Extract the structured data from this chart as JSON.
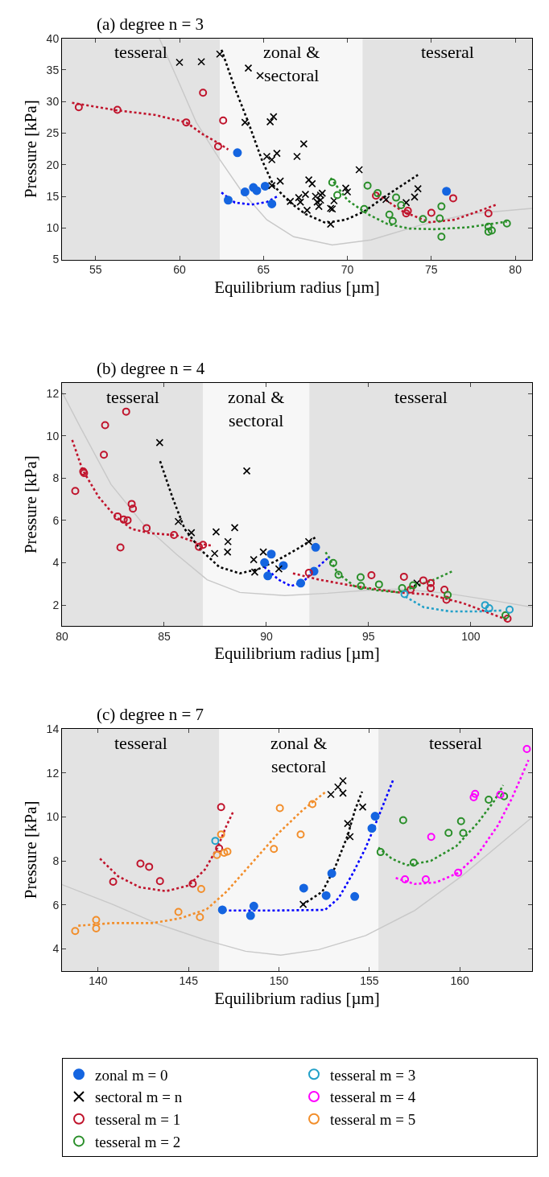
{
  "chart_data": [
    {
      "type": "scatter",
      "title": "(a) degree n = 3",
      "xlabel": "Equilibrium radius [µm]",
      "ylabel": "Pressure [kPa]",
      "xlim": [
        53,
        81
      ],
      "ylim": [
        5,
        40
      ],
      "xticks": [
        55,
        60,
        65,
        70,
        75,
        80
      ],
      "yticks": [
        5,
        10,
        15,
        20,
        25,
        30,
        35,
        40
      ],
      "grid": false,
      "legend": "bottom",
      "bands": [
        {
          "axis": "x",
          "from": 53,
          "to": 62.4,
          "label": "tesseral",
          "color": "#e3e3e3"
        },
        {
          "axis": "x",
          "from": 62.4,
          "to": 70.9,
          "label": "zonal &\nsectoral",
          "color": "#f7f7f7"
        },
        {
          "axis": "x",
          "from": 70.9,
          "to": 81,
          "label": "tesseral",
          "color": "#e3e3e3"
        }
      ],
      "series": [
        {
          "type": "line",
          "line_style": "solid",
          "color": "#c8c8c8",
          "x": [
            58.8,
            59.9,
            61.0,
            62.4,
            63.7,
            65.2,
            66.8,
            69.1,
            71.4,
            74.3,
            77.2,
            81
          ],
          "values": [
            40,
            33.4,
            26.7,
            20.8,
            15.8,
            11.3,
            8.6,
            7.3,
            8.1,
            10.4,
            12.2,
            13.1
          ]
        },
        {
          "type": "line",
          "line_style": "dotted",
          "color": "#c0142c",
          "x": [
            53.6,
            56.3,
            58.5,
            60.4,
            61.4,
            62.4,
            62.9
          ],
          "values": [
            29.8,
            28.6,
            27.9,
            26.7,
            24.8,
            23.3,
            22.4
          ]
        },
        {
          "type": "line",
          "line_style": "dotted",
          "color": "#c0142c",
          "x": [
            71.8,
            73.3,
            74.9,
            76.4,
            78.9
          ],
          "values": [
            15.3,
            12.6,
            10.9,
            11.3,
            13.7
          ]
        },
        {
          "type": "line",
          "line_style": "dotted",
          "color": "#0000ff",
          "x": [
            62.5,
            63.3,
            64.3,
            65.2,
            65.9
          ],
          "values": [
            15.6,
            14.0,
            13.7,
            14.1,
            15.1
          ]
        },
        {
          "type": "line",
          "line_style": "dotted",
          "color": "#000000",
          "x": [
            62.5,
            63.3,
            64.1,
            64.9,
            65.6,
            66.6,
            67.5,
            68.7,
            69.9,
            71.0,
            72.2,
            74.2
          ],
          "values": [
            38.2,
            32.1,
            26.7,
            20.8,
            16.7,
            14.0,
            12.2,
            10.8,
            11.3,
            12.6,
            14.9,
            18.4
          ]
        },
        {
          "type": "line",
          "line_style": "dotted",
          "color": "#2a8f2a",
          "x": [
            69.0,
            70.0,
            71.2,
            72.4,
            73.7,
            75.2,
            77.2,
            79.5
          ],
          "values": [
            17.9,
            14.4,
            12.2,
            10.6,
            9.9,
            9.8,
            10.1,
            11.0
          ]
        },
        {
          "type": "scatter",
          "name": "zonal m = 0",
          "marker": "circle",
          "color": "#1565e0",
          "x": [
            63.45,
            62.9,
            63.9,
            64.4,
            64.6,
            65.1,
            65.5,
            75.9
          ],
          "values": [
            21.9,
            14.4,
            15.7,
            16.4,
            15.9,
            16.6,
            13.8,
            15.8
          ]
        },
        {
          "type": "scatter",
          "name": "sectoral m = n",
          "marker": "cross",
          "color": "#000000",
          "x": [
            60.0,
            61.3,
            62.4,
            64.1,
            64.8,
            63.9,
            65.4,
            65.6,
            65.2,
            65.5,
            65.8,
            65.5,
            66.0,
            67.0,
            67.4,
            67.7,
            67.9,
            66.6,
            67.1,
            67.2,
            67.5,
            67.6,
            68.1,
            68.4,
            68.5,
            68.2,
            68.3,
            68.4,
            69.0,
            69.1,
            69.0,
            69.2,
            69.9,
            70.0,
            70.7,
            72.3,
            73.5,
            74.0,
            74.2
          ],
          "values": [
            36.2,
            36.3,
            37.5,
            35.3,
            34.1,
            26.7,
            26.8,
            27.6,
            21.3,
            20.8,
            21.8,
            16.7,
            17.4,
            21.3,
            23.3,
            17.6,
            17.0,
            14.2,
            14.8,
            14.1,
            15.3,
            12.8,
            15.0,
            15.2,
            15.5,
            14.1,
            13.4,
            14.4,
            13.1,
            13.0,
            10.6,
            14.3,
            16.3,
            15.7,
            19.2,
            14.5,
            14.0,
            14.9,
            16.2
          ]
        },
        {
          "type": "scatter",
          "name": "tesseral m = 1",
          "marker": "circle-open",
          "color": "#c0142c",
          "x": [
            54.0,
            56.3,
            60.4,
            61.4,
            62.6,
            62.3,
            71.7,
            73.5,
            73.6,
            75.0,
            76.3,
            78.4
          ],
          "values": [
            29.1,
            28.7,
            26.7,
            31.4,
            27.0,
            22.9,
            15.1,
            12.3,
            12.7,
            12.4,
            14.7,
            12.3
          ]
        },
        {
          "type": "scatter",
          "name": "tesseral m = 2",
          "marker": "circle-open",
          "color": "#2a8f2a",
          "x": [
            69.1,
            69.4,
            71.0,
            71.2,
            71.8,
            72.5,
            72.7,
            72.9,
            73.2,
            74.5,
            75.5,
            75.6,
            75.6,
            78.4,
            78.4,
            78.6,
            79.5
          ],
          "values": [
            17.2,
            15.2,
            13.0,
            16.7,
            15.5,
            12.1,
            11.1,
            14.8,
            13.6,
            11.4,
            11.5,
            13.4,
            8.6,
            10.2,
            9.4,
            9.6,
            10.7
          ]
        }
      ]
    },
    {
      "type": "scatter",
      "title": "(b) degree n = 4",
      "xlabel": "Equilibrium radius [µm]",
      "ylabel": "Pressure [kPa]",
      "xlim": [
        80,
        103
      ],
      "ylim": [
        1,
        12.5
      ],
      "xticks": [
        80,
        85,
        90,
        95,
        100
      ],
      "yticks": [
        2,
        4,
        6,
        8,
        10,
        12
      ],
      "grid": false,
      "legend": "bottom",
      "bands": [
        {
          "axis": "x",
          "from": 80,
          "to": 86.9,
          "label": "tesseral",
          "color": "#e3e3e3"
        },
        {
          "axis": "x",
          "from": 86.9,
          "to": 92.1,
          "label": "zonal &\nsectoral",
          "color": "#f7f7f7"
        },
        {
          "axis": "x",
          "from": 92.1,
          "to": 103,
          "label": "tesseral",
          "color": "#e3e3e3"
        }
      ],
      "series": [
        {
          "type": "line",
          "line_style": "solid",
          "color": "#c8c8c8",
          "x": [
            80,
            80.9,
            82.4,
            84.0,
            85.6,
            87.1,
            88.7,
            90.9,
            93.0,
            94.9,
            96.5,
            98.8,
            101.2,
            103.0
          ],
          "values": [
            12.07,
            10.4,
            7.7,
            5.8,
            4.4,
            3.2,
            2.6,
            2.45,
            2.56,
            2.7,
            2.76,
            2.56,
            2.2,
            1.9
          ]
        },
        {
          "type": "line",
          "line_style": "dotted",
          "color": "#c0142c",
          "x": [
            80.5,
            81.0,
            81.8,
            82.6,
            83.4,
            84.3,
            85.6,
            86.7,
            87.4
          ],
          "values": [
            9.8,
            8.4,
            7.1,
            6.2,
            5.6,
            5.4,
            5.3,
            4.9,
            4.8
          ]
        },
        {
          "type": "line",
          "line_style": "dotted",
          "color": "#c0142c",
          "x": [
            91.3,
            92.6,
            94.3,
            96.5,
            98.0,
            99.6,
            101.8
          ],
          "values": [
            3.5,
            3.2,
            2.9,
            2.6,
            2.5,
            2.1,
            1.3
          ]
        },
        {
          "type": "line",
          "line_style": "dotted",
          "color": "#0000ff",
          "x": [
            89.9,
            90.6,
            91.2,
            91.8,
            92.4,
            93.1
          ],
          "values": [
            3.8,
            3.2,
            2.9,
            3.1,
            3.7,
            4.3
          ]
        },
        {
          "type": "line",
          "line_style": "dotted",
          "color": "#000000",
          "x": [
            84.8,
            85.4,
            86.0,
            86.8,
            87.7,
            88.7,
            89.6,
            90.5,
            91.6,
            92.4
          ],
          "values": [
            8.8,
            7.1,
            5.6,
            4.6,
            3.8,
            3.5,
            3.7,
            4.1,
            4.7,
            5.2
          ]
        },
        {
          "type": "line",
          "line_style": "dotted",
          "color": "#2a8f2a",
          "x": [
            92.9,
            93.5,
            94.3,
            95.4,
            96.5,
            97.3,
            98.2,
            99.1
          ],
          "values": [
            4.5,
            3.5,
            2.9,
            2.7,
            2.6,
            2.9,
            3.2,
            3.6
          ]
        },
        {
          "type": "line",
          "line_style": "dotted",
          "color": "#22a0c8",
          "x": [
            96.8,
            97.7,
            99.0,
            100.4,
            101.6
          ],
          "values": [
            2.4,
            1.9,
            1.7,
            1.7,
            1.75
          ]
        },
        {
          "type": "scatter",
          "name": "zonal m = 0",
          "marker": "circle",
          "color": "#1565e0",
          "x": [
            89.91,
            90.24,
            90.07,
            90.83,
            91.68,
            92.33,
            92.41
          ],
          "values": [
            4.01,
            4.41,
            3.38,
            3.87,
            3.04,
            3.6,
            4.73
          ]
        },
        {
          "type": "scatter",
          "name": "sectoral m = n",
          "marker": "cross",
          "color": "#000000",
          "x": [
            84.78,
            85.69,
            86.33,
            87.47,
            87.54,
            88.12,
            88.1,
            88.45,
            89.04,
            89.38,
            89.43,
            89.85,
            90.61,
            92.07,
            97.37
          ],
          "values": [
            9.68,
            5.95,
            5.42,
            4.44,
            5.46,
            5.0,
            4.51,
            5.66,
            8.34,
            4.15,
            3.56,
            4.51,
            3.71,
            5.0,
            3.04
          ]
        },
        {
          "type": "scatter",
          "name": "tesseral m = 1",
          "marker": "circle-open",
          "color": "#c0142c",
          "x": [
            80.65,
            81.04,
            81.08,
            82.05,
            82.11,
            83.14,
            82.86,
            82.72,
            83.02,
            83.21,
            83.41,
            83.47,
            84.14,
            85.48,
            86.7,
            86.9,
            92.08,
            95.14,
            96.73,
            97.06,
            97.68,
            98.04,
            98.04,
            98.71,
            98.81,
            101.8
          ],
          "values": [
            7.39,
            8.31,
            8.24,
            9.1,
            10.5,
            11.14,
            4.72,
            6.19,
            6.04,
            6.01,
            6.78,
            6.56,
            5.64,
            5.31,
            4.75,
            4.85,
            3.53,
            3.41,
            3.34,
            2.74,
            3.17,
            3.04,
            2.8,
            2.73,
            2.25,
            1.36
          ]
        },
        {
          "type": "scatter",
          "name": "tesseral m = 2",
          "marker": "circle-open",
          "color": "#2a8f2a",
          "x": [
            93.27,
            93.53,
            94.61,
            94.63,
            95.51,
            96.64,
            97.18,
            98.87,
            101.7
          ],
          "values": [
            3.99,
            3.43,
            3.32,
            2.91,
            2.98,
            2.8,
            2.94,
            2.48,
            1.52
          ]
        },
        {
          "type": "scatter",
          "name": "tesseral m = 3",
          "marker": "circle-open",
          "color": "#22a0c8",
          "x": [
            96.76,
            100.7,
            100.9,
            101.9
          ],
          "values": [
            2.52,
            2.0,
            1.85,
            1.79
          ]
        }
      ]
    },
    {
      "type": "scatter",
      "title": "(c) degree n = 7",
      "xlabel": "Equilibrium radius [µm]",
      "ylabel": "Pressure [kPa]",
      "xlim": [
        138,
        164
      ],
      "ylim": [
        3,
        14
      ],
      "xticks": [
        140,
        145,
        150,
        155,
        160
      ],
      "yticks": [
        4,
        6,
        8,
        10,
        12,
        14
      ],
      "grid": false,
      "legend": "bottom",
      "bands": [
        {
          "axis": "x",
          "from": 138,
          "to": 146.7,
          "label": "tesseral",
          "color": "#e3e3e3"
        },
        {
          "axis": "x",
          "from": 146.7,
          "to": 155.5,
          "label": "zonal &\nsectoral",
          "color": "#f7f7f7"
        },
        {
          "axis": "x",
          "from": 155.5,
          "to": 164,
          "label": "tesseral",
          "color": "#e3e3e3"
        }
      ],
      "series": [
        {
          "type": "line",
          "line_style": "solid",
          "color": "#c8c8c8",
          "x": [
            138,
            140.8,
            143.4,
            146.0,
            148.15,
            150.1,
            152.2,
            154.8,
            157.5,
            160.1,
            164
          ],
          "values": [
            6.92,
            6.02,
            5.1,
            4.38,
            3.89,
            3.71,
            3.96,
            4.6,
            5.74,
            7.3,
            9.98
          ]
        },
        {
          "type": "line",
          "line_style": "dotted",
          "color": "#c0142c",
          "x": [
            140.1,
            141.1,
            142.3,
            143.75,
            145.0,
            145.9,
            146.6,
            147.1,
            147.45
          ],
          "values": [
            8.1,
            7.3,
            6.8,
            6.62,
            6.88,
            7.6,
            8.6,
            9.6,
            10.2
          ]
        },
        {
          "type": "line",
          "line_style": "dotted",
          "color": "#f28e2b",
          "x": [
            138.9,
            140.8,
            143.05,
            144.6,
            146.0,
            147.1,
            148.5,
            149.9,
            151.3,
            152.6
          ],
          "values": [
            5.05,
            5.17,
            5.17,
            5.4,
            5.8,
            6.6,
            7.9,
            9.2,
            10.3,
            11.15
          ]
        },
        {
          "type": "line",
          "line_style": "dotted",
          "color": "#0000ff",
          "x": [
            146.7,
            149.6,
            152.55,
            153.3,
            154.1,
            154.8,
            155.5,
            156.3
          ],
          "values": [
            5.74,
            5.74,
            5.77,
            6.3,
            7.45,
            8.6,
            10.0,
            11.65
          ]
        },
        {
          "type": "line",
          "line_style": "dotted",
          "color": "#000000",
          "x": [
            151.3,
            152.4,
            153.1,
            153.8,
            154.2,
            154.6
          ],
          "values": [
            6.0,
            6.6,
            7.7,
            9.15,
            10.3,
            11.15
          ]
        },
        {
          "type": "line",
          "line_style": "dotted",
          "color": "#2a8f2a",
          "x": [
            155.5,
            156.25,
            157.1,
            158.4,
            159.8,
            161.0,
            161.9,
            162.4
          ],
          "values": [
            8.6,
            8.09,
            7.8,
            8.0,
            8.66,
            9.73,
            10.72,
            11.44
          ]
        },
        {
          "type": "line",
          "line_style": "dotted",
          "color": "#ff00ff",
          "x": [
            156.46,
            157.5,
            158.7,
            159.9,
            161.0,
            162.1,
            162.9,
            163.8
          ],
          "values": [
            7.22,
            6.95,
            7.02,
            7.45,
            8.3,
            9.6,
            10.87,
            12.58
          ]
        },
        {
          "type": "scatter",
          "name": "zonal m = 0",
          "marker": "circle",
          "color": "#1565e0",
          "x": [
            146.87,
            148.43,
            148.61,
            151.37,
            152.61,
            152.92,
            154.19,
            155.14,
            155.32
          ],
          "values": [
            5.77,
            5.51,
            5.94,
            6.76,
            6.42,
            7.43,
            6.38,
            9.48,
            10.03
          ]
        },
        {
          "type": "scatter",
          "name": "sectoral m = n",
          "marker": "cross",
          "color": "#000000",
          "x": [
            151.34,
            152.87,
            153.26,
            153.54,
            153.54,
            153.8,
            153.93,
            154.63
          ],
          "values": [
            6.02,
            11.02,
            11.36,
            11.64,
            11.08,
            9.7,
            9.1,
            10.45
          ]
        },
        {
          "type": "scatter",
          "name": "tesseral m = 1",
          "marker": "circle-open",
          "color": "#c0142c",
          "x": [
            140.83,
            142.34,
            142.82,
            143.42,
            145.23,
            146.8,
            146.69
          ],
          "values": [
            7.05,
            7.87,
            7.73,
            7.08,
            6.96,
            10.44,
            8.57
          ]
        },
        {
          "type": "scatter",
          "name": "tesseral m = 2",
          "marker": "circle-open",
          "color": "#2a8f2a",
          "x": [
            155.62,
            156.87,
            157.45,
            159.38,
            160.07,
            160.19,
            161.6,
            162.45
          ],
          "values": [
            8.4,
            9.85,
            7.92,
            9.27,
            9.8,
            9.26,
            10.78,
            10.94
          ]
        },
        {
          "type": "scatter",
          "name": "tesseral m = 3",
          "marker": "circle-open",
          "color": "#22a0c8",
          "x": [
            146.48
          ],
          "values": [
            8.91
          ]
        },
        {
          "type": "scatter",
          "name": "tesseral m = 4",
          "marker": "circle-open",
          "color": "#ff00ff",
          "x": [
            156.97,
            158.12,
            158.42,
            159.91,
            160.77,
            160.85,
            162.24,
            163.71
          ],
          "values": [
            7.16,
            7.16,
            9.09,
            7.46,
            10.89,
            11.05,
            11.01,
            13.09
          ]
        },
        {
          "type": "scatter",
          "name": "tesseral m = 5",
          "marker": "circle-open",
          "color": "#f28e2b",
          "x": [
            138.73,
            139.89,
            139.89,
            144.44,
            145.63,
            145.7,
            146.57,
            146.8,
            146.97,
            147.15,
            149.72,
            150.05,
            151.2,
            151.85
          ],
          "values": [
            4.81,
            5.31,
            4.93,
            5.68,
            5.44,
            6.72,
            8.27,
            9.2,
            8.37,
            8.42,
            8.54,
            10.4,
            9.2,
            10.58
          ]
        }
      ]
    }
  ]
}
